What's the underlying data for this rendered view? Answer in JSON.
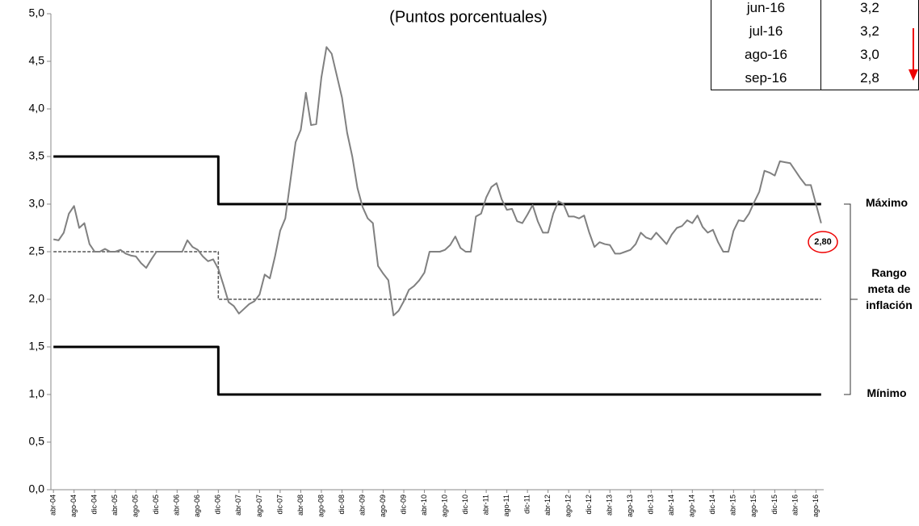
{
  "chart_data": {
    "type": "line",
    "subtitle": "(Puntos porcentuales)",
    "categories": [
      "abr-04",
      null,
      null,
      null,
      "ago-04",
      null,
      null,
      null,
      "dic-04",
      null,
      null,
      null,
      "abr-05",
      null,
      null,
      null,
      "ago-05",
      null,
      null,
      null,
      "dic-05",
      null,
      null,
      null,
      "abr-06",
      null,
      null,
      null,
      "ago-06",
      null,
      null,
      null,
      "dic-06",
      null,
      null,
      null,
      "abr-07",
      null,
      null,
      null,
      "ago-07",
      null,
      null,
      null,
      "dic-07",
      null,
      null,
      null,
      "abr-08",
      null,
      null,
      null,
      "ago-08",
      null,
      null,
      null,
      "dic-08",
      null,
      null,
      null,
      "abr-09",
      null,
      null,
      null,
      "ago-09",
      null,
      null,
      null,
      "dic-09",
      null,
      null,
      null,
      "abr-10",
      null,
      null,
      null,
      "ago-10",
      null,
      null,
      null,
      "dic-10",
      null,
      null,
      null,
      "abr-11",
      null,
      null,
      null,
      "ago-11",
      null,
      null,
      null,
      "dic-11",
      null,
      null,
      null,
      "abr-12",
      null,
      null,
      null,
      "ago-12",
      null,
      null,
      null,
      "dic-12",
      null,
      null,
      null,
      "abr-13",
      null,
      null,
      null,
      "ago-13",
      null,
      null,
      null,
      "dic-13",
      null,
      null,
      null,
      "abr-14",
      null,
      null,
      null,
      "ago-14",
      null,
      null,
      null,
      "dic-14",
      null,
      null,
      null,
      "abr-15",
      null,
      null,
      null,
      "ago-15",
      null,
      null,
      null,
      "dic-15",
      null,
      null,
      null,
      "abr-16",
      null,
      null,
      null,
      "ago-16",
      null
    ],
    "series": [
      {
        "color": "#555555",
        "width": 1.5,
        "dash": "4 2",
        "drawstyle": "steps-pre",
        "values": [
          2.5,
          2.5,
          2.5,
          2.5,
          2.5,
          2.5,
          2.5,
          2.5,
          2.5,
          2.5,
          2.5,
          2.5,
          2.5,
          2.5,
          2.5,
          2.5,
          2.5,
          2.5,
          2.5,
          2.5,
          2.5,
          2.5,
          2.5,
          2.5,
          2.5,
          2.5,
          2.5,
          2.5,
          2.5,
          2.5,
          2.5,
          2.5,
          2,
          2,
          2,
          2,
          2,
          2,
          2,
          2,
          2,
          2,
          2,
          2,
          2,
          2,
          2,
          2,
          2,
          2,
          2,
          2,
          2,
          2,
          2,
          2,
          2,
          2,
          2,
          2,
          2,
          2,
          2,
          2,
          2,
          2,
          2,
          2,
          2,
          2,
          2,
          2,
          2,
          2,
          2,
          2,
          2,
          2,
          2,
          2,
          2,
          2,
          2,
          2,
          2,
          2,
          2,
          2,
          2,
          2,
          2,
          2,
          2,
          2,
          2,
          2,
          2,
          2,
          2,
          2,
          2,
          2,
          2,
          2,
          2,
          2,
          2,
          2,
          2,
          2,
          2,
          2,
          2,
          2,
          2,
          2,
          2,
          2,
          2,
          2,
          2,
          2,
          2,
          2,
          2,
          2,
          2,
          2,
          2,
          2,
          2,
          2,
          2,
          2,
          2,
          2,
          2,
          2,
          2,
          2,
          2,
          2,
          2,
          2,
          2,
          2,
          2,
          2,
          2,
          2
        ]
      },
      {
        "color": "#000000",
        "width": 3,
        "drawstyle": "steps-pre",
        "values": [
          3.5,
          3.5,
          3.5,
          3.5,
          3.5,
          3.5,
          3.5,
          3.5,
          3.5,
          3.5,
          3.5,
          3.5,
          3.5,
          3.5,
          3.5,
          3.5,
          3.5,
          3.5,
          3.5,
          3.5,
          3.5,
          3.5,
          3.5,
          3.5,
          3.5,
          3.5,
          3.5,
          3.5,
          3.5,
          3.5,
          3.5,
          3.5,
          3,
          3,
          3,
          3,
          3,
          3,
          3,
          3,
          3,
          3,
          3,
          3,
          3,
          3,
          3,
          3,
          3,
          3,
          3,
          3,
          3,
          3,
          3,
          3,
          3,
          3,
          3,
          3,
          3,
          3,
          3,
          3,
          3,
          3,
          3,
          3,
          3,
          3,
          3,
          3,
          3,
          3,
          3,
          3,
          3,
          3,
          3,
          3,
          3,
          3,
          3,
          3,
          3,
          3,
          3,
          3,
          3,
          3,
          3,
          3,
          3,
          3,
          3,
          3,
          3,
          3,
          3,
          3,
          3,
          3,
          3,
          3,
          3,
          3,
          3,
          3,
          3,
          3,
          3,
          3,
          3,
          3,
          3,
          3,
          3,
          3,
          3,
          3,
          3,
          3,
          3,
          3,
          3,
          3,
          3,
          3,
          3,
          3,
          3,
          3,
          3,
          3,
          3,
          3,
          3,
          3,
          3,
          3,
          3,
          3,
          3,
          3,
          3,
          3,
          3,
          3,
          3,
          3
        ]
      },
      {
        "color": "#000000",
        "width": 3,
        "drawstyle": "steps-pre",
        "values": [
          1.5,
          1.5,
          1.5,
          1.5,
          1.5,
          1.5,
          1.5,
          1.5,
          1.5,
          1.5,
          1.5,
          1.5,
          1.5,
          1.5,
          1.5,
          1.5,
          1.5,
          1.5,
          1.5,
          1.5,
          1.5,
          1.5,
          1.5,
          1.5,
          1.5,
          1.5,
          1.5,
          1.5,
          1.5,
          1.5,
          1.5,
          1.5,
          1,
          1,
          1,
          1,
          1,
          1,
          1,
          1,
          1,
          1,
          1,
          1,
          1,
          1,
          1,
          1,
          1,
          1,
          1,
          1,
          1,
          1,
          1,
          1,
          1,
          1,
          1,
          1,
          1,
          1,
          1,
          1,
          1,
          1,
          1,
          1,
          1,
          1,
          1,
          1,
          1,
          1,
          1,
          1,
          1,
          1,
          1,
          1,
          1,
          1,
          1,
          1,
          1,
          1,
          1,
          1,
          1,
          1,
          1,
          1,
          1,
          1,
          1,
          1,
          1,
          1,
          1,
          1,
          1,
          1,
          1,
          1,
          1,
          1,
          1,
          1,
          1,
          1,
          1,
          1,
          1,
          1,
          1,
          1,
          1,
          1,
          1,
          1,
          1,
          1,
          1,
          1,
          1,
          1,
          1,
          1,
          1,
          1,
          1,
          1,
          1,
          1,
          1,
          1,
          1,
          1,
          1,
          1,
          1,
          1,
          1,
          1,
          1,
          1,
          1,
          1,
          1,
          1
        ]
      },
      {
        "color": "#808080",
        "width": 2,
        "drawstyle": "linear",
        "values": [
          2.63,
          2.62,
          2.7,
          2.9,
          2.98,
          2.75,
          2.8,
          2.58,
          2.5,
          2.5,
          2.53,
          2.5,
          2.5,
          2.52,
          2.48,
          2.46,
          2.45,
          2.38,
          2.33,
          2.42,
          2.5,
          2.5,
          2.5,
          2.5,
          2.5,
          2.5,
          2.62,
          2.55,
          2.52,
          2.45,
          2.4,
          2.42,
          2.32,
          2.15,
          1.97,
          1.93,
          1.85,
          1.9,
          1.95,
          1.98,
          2.05,
          2.26,
          2.22,
          2.45,
          2.72,
          2.85,
          3.25,
          3.65,
          3.78,
          4.17,
          3.83,
          3.84,
          4.33,
          4.65,
          4.58,
          4.35,
          4.12,
          3.75,
          3.5,
          3.17,
          2.97,
          2.85,
          2.8,
          2.35,
          2.27,
          2.2,
          1.83,
          1.88,
          1.98,
          2.1,
          2.14,
          2.2,
          2.28,
          2.5,
          2.5,
          2.5,
          2.52,
          2.57,
          2.66,
          2.54,
          2.5,
          2.5,
          2.87,
          2.9,
          3.07,
          3.18,
          3.22,
          3.05,
          2.94,
          2.95,
          2.82,
          2.8,
          2.89,
          2.99,
          2.82,
          2.7,
          2.7,
          2.9,
          3.03,
          3,
          2.87,
          2.87,
          2.85,
          2.88,
          2.7,
          2.55,
          2.6,
          2.58,
          2.57,
          2.48,
          2.48,
          2.5,
          2.52,
          2.58,
          2.7,
          2.65,
          2.63,
          2.7,
          2.64,
          2.58,
          2.68,
          2.75,
          2.77,
          2.83,
          2.8,
          2.88,
          2.76,
          2.7,
          2.73,
          2.6,
          2.5,
          2.5,
          2.72,
          2.83,
          2.82,
          2.9,
          3.02,
          3.13,
          3.35,
          3.33,
          3.3,
          3.45,
          3.44,
          3.43,
          3.35,
          3.27,
          3.2,
          3.2,
          3,
          2.8
        ]
      }
    ],
    "ylim": [
      0,
      5
    ],
    "yticks": [
      {
        "value": 0,
        "label": "0,0"
      },
      {
        "value": 0.5,
        "label": "0,5"
      },
      {
        "value": 1,
        "label": "1,0"
      },
      {
        "value": 1.5,
        "label": "1,5"
      },
      {
        "value": 2,
        "label": "2,0"
      },
      {
        "value": 2.5,
        "label": "2,5"
      },
      {
        "value": 3,
        "label": "3,0"
      },
      {
        "value": 3.5,
        "label": "3,5"
      },
      {
        "value": 4,
        "label": "4,0"
      },
      {
        "value": 4.5,
        "label": "4,5"
      },
      {
        "value": 5,
        "label": "5,0"
      }
    ],
    "grid": false,
    "annotations": [
      "Máximo",
      "Rango meta de inflación",
      "Mínimo",
      "2,80"
    ]
  },
  "table": {
    "rows": [
      [
        "jun-16",
        "3,2"
      ],
      [
        "jul-16",
        "3,2"
      ],
      [
        "ago-16",
        "3,0"
      ],
      [
        "sep-16",
        "2,8"
      ]
    ]
  }
}
